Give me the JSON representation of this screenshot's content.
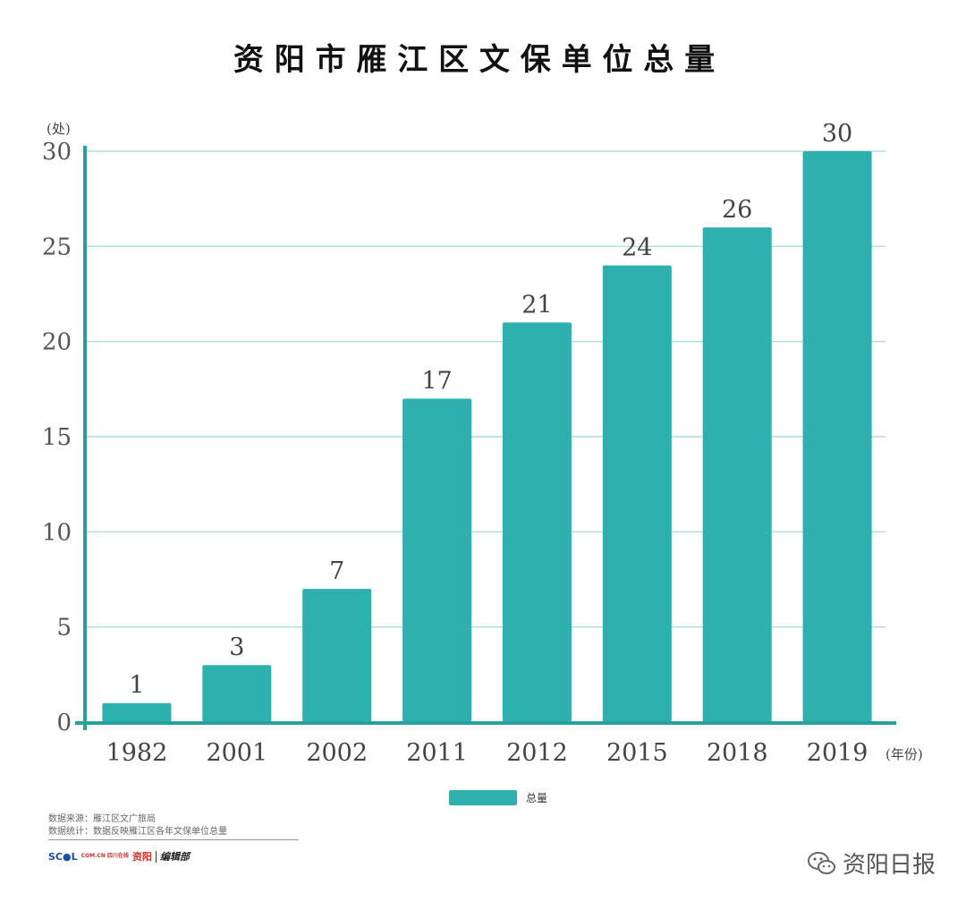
{
  "chart_data": {
    "type": "bar",
    "title": "资 阳 市 雁 江 区 文 保 单 位 总 量",
    "ylabel": "(处)",
    "xlabel": "(年份)",
    "categories": [
      "1982",
      "2001",
      "2002",
      "2011",
      "2012",
      "2015",
      "2018",
      "2019"
    ],
    "series": [
      {
        "name": "总量",
        "values": [
          1,
          3,
          7,
          17,
          21,
          24,
          26,
          30
        ]
      }
    ],
    "ylim": [
      0,
      30
    ],
    "yticks": [
      0,
      5,
      10,
      15,
      20,
      25,
      30
    ],
    "grid": true,
    "legend": "bottom-center",
    "colors": {
      "bar": "#2eb0ae",
      "grid": "#9fd6d5",
      "axis": "#2a9e9c"
    }
  },
  "footer": {
    "source": "数据来源：雁江区文广旅局",
    "stats": "数据统计：数据反映雁江区各年文保单位总量",
    "logo_scol": "SC●L",
    "logo_scol_small": "COM.CN 四川在线",
    "logo_city": "资阳",
    "logo_team": "编辑部"
  },
  "watermark": {
    "text": "资阳日报",
    "icon": "wechat-icon"
  }
}
